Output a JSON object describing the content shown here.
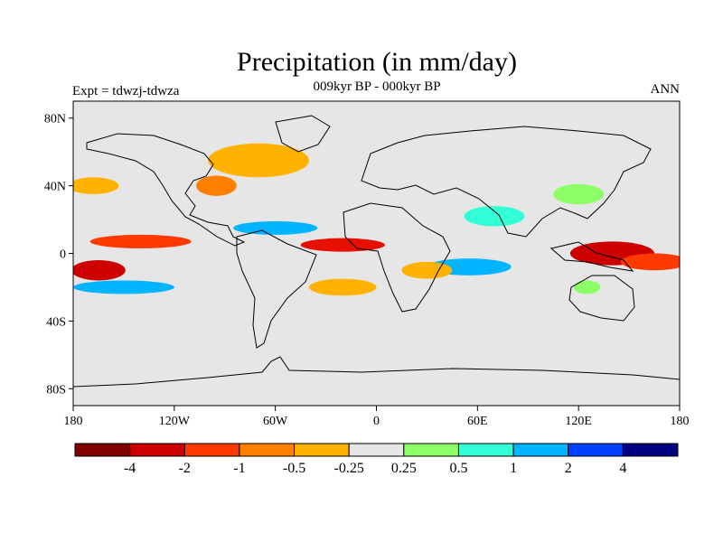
{
  "title": "Precipitation (in mm/day)",
  "subtitle": "009kyr BP - 000kyr BP",
  "left_label": "Expt = tdwzj-tdwza",
  "right_label": "ANN",
  "map": {
    "background_color": "#e6e6e6",
    "lon_ticks": [
      "180",
      "120W",
      "60W",
      "0",
      "60E",
      "120E",
      "180"
    ],
    "lat_ticks": [
      "80N",
      "40N",
      "0",
      "40S",
      "80S"
    ],
    "lon_range": [
      -180,
      180
    ],
    "lat_range": [
      -90,
      90
    ],
    "anomaly_bands": [
      {
        "name": "north-atlantic-orange",
        "color": "#ffb300",
        "lon": -70,
        "lat": 55,
        "rx": 30,
        "ry": 10
      },
      {
        "name": "gulf-orange",
        "color": "#ff8000",
        "lon": -95,
        "lat": 40,
        "rx": 12,
        "ry": 6
      },
      {
        "name": "pacific-north-orange",
        "color": "#ffb300",
        "lon": -168,
        "lat": 40,
        "rx": 15,
        "ry": 5
      },
      {
        "name": "east-pacific-red-belt",
        "color": "#ff3a00",
        "lon": -140,
        "lat": 7,
        "rx": 30,
        "ry": 4
      },
      {
        "name": "atlantic-red-belt",
        "color": "#e61000",
        "lon": -20,
        "lat": 5,
        "rx": 25,
        "ry": 4
      },
      {
        "name": "itcz-blue-north",
        "color": "#00b4ff",
        "lon": -60,
        "lat": 15,
        "rx": 25,
        "ry": 4
      },
      {
        "name": "south-pacific-red",
        "color": "#cc0000",
        "lon": -165,
        "lat": -10,
        "rx": 16,
        "ry": 6
      },
      {
        "name": "south-pacific-blue",
        "color": "#00b4ff",
        "lon": -150,
        "lat": -20,
        "rx": 30,
        "ry": 4
      },
      {
        "name": "india-cyan",
        "color": "#33ffd6",
        "lon": 70,
        "lat": 22,
        "rx": 18,
        "ry": 6
      },
      {
        "name": "indian-ocean-blue",
        "color": "#00b4ff",
        "lon": 55,
        "lat": -8,
        "rx": 25,
        "ry": 5
      },
      {
        "name": "maritime-continent-red",
        "color": "#cc0000",
        "lon": 140,
        "lat": 0,
        "rx": 25,
        "ry": 7
      },
      {
        "name": "west-pacific-red",
        "color": "#ff3a00",
        "lon": 165,
        "lat": -5,
        "rx": 20,
        "ry": 5
      },
      {
        "name": "east-asia-green",
        "color": "#8cff66",
        "lon": 120,
        "lat": 35,
        "rx": 15,
        "ry": 6
      },
      {
        "name": "australia-green",
        "color": "#8cff66",
        "lon": 125,
        "lat": -20,
        "rx": 8,
        "ry": 4
      },
      {
        "name": "south-atlantic-orange",
        "color": "#ffb300",
        "lon": -20,
        "lat": -20,
        "rx": 20,
        "ry": 5
      },
      {
        "name": "africa-orange",
        "color": "#ffb300",
        "lon": 30,
        "lat": -10,
        "rx": 15,
        "ry": 5
      }
    ]
  },
  "colorbar": {
    "colors": [
      "#800000",
      "#cc0000",
      "#ff3a00",
      "#ff8000",
      "#ffb300",
      "#e6e6e6",
      "#8cff66",
      "#33ffd6",
      "#00b4ff",
      "#0040ff",
      "#000080"
    ],
    "labels": [
      "-4",
      "-2",
      "-1",
      "-0.5",
      "-0.25",
      "0.25",
      "0.5",
      "1",
      "2",
      "4"
    ]
  }
}
